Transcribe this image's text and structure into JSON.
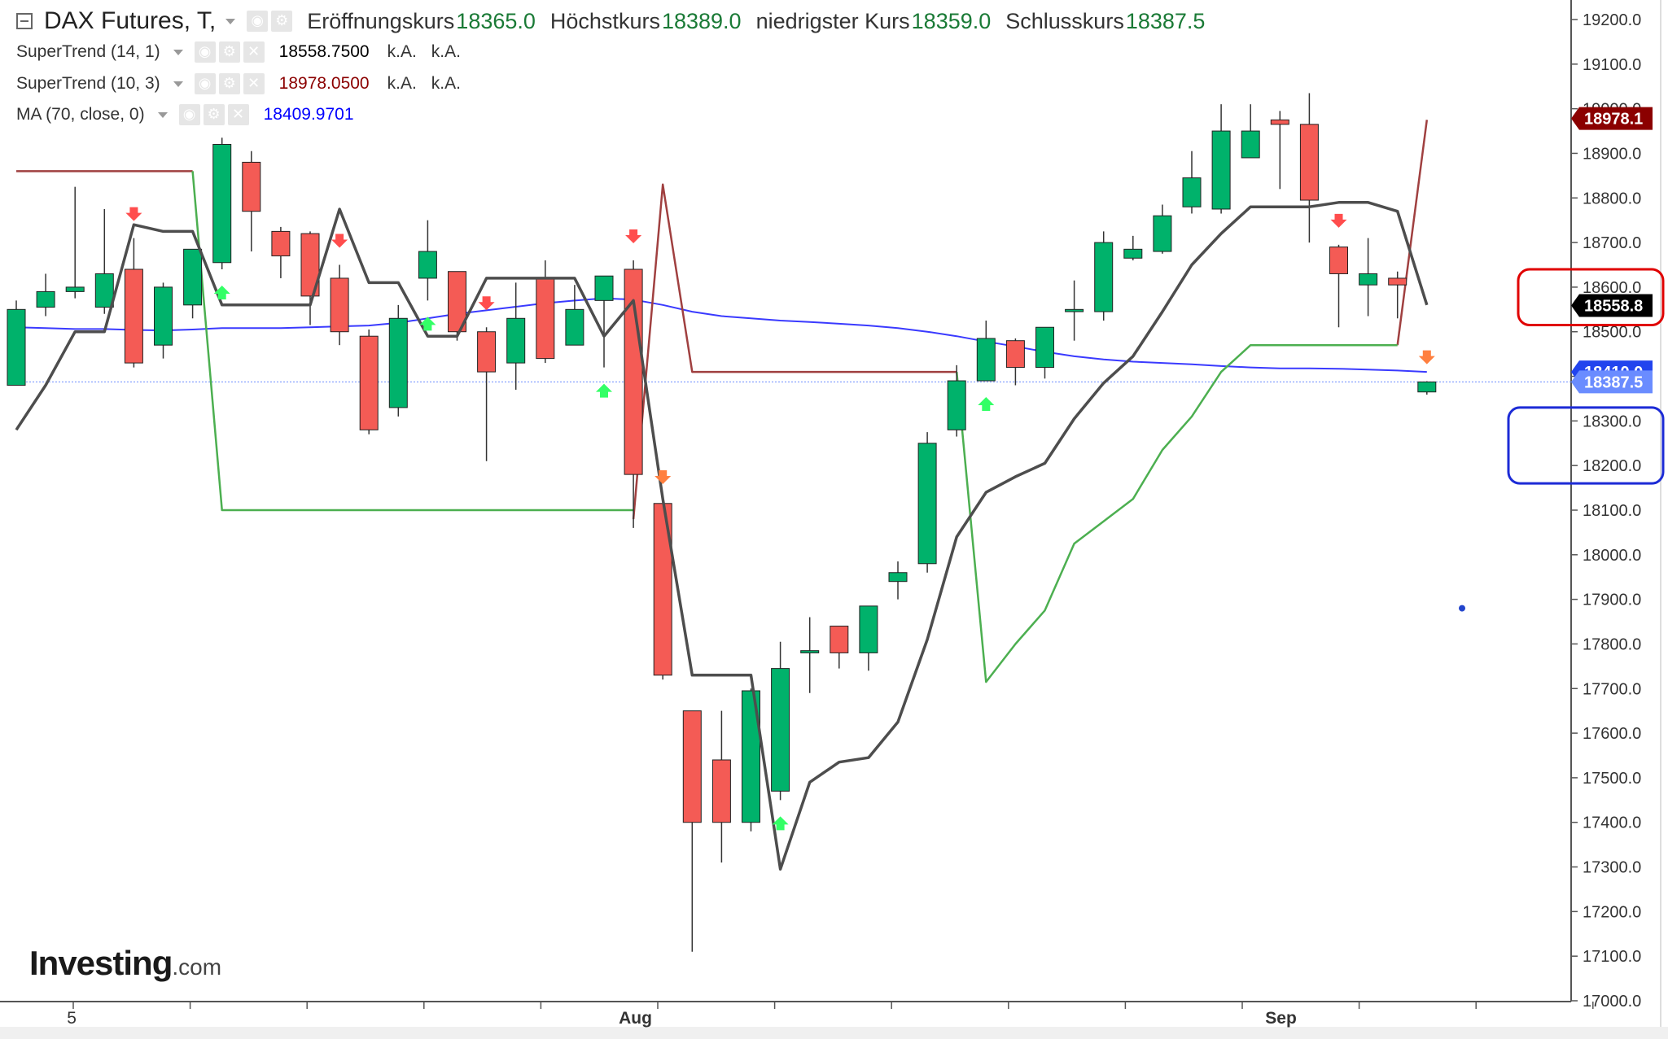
{
  "legend": {
    "title": "DAX Futures, T,",
    "ohlc": [
      {
        "label": "Eröffnungskurs",
        "value": "18365.0"
      },
      {
        "label": "Höchstkurs",
        "value": "18389.0"
      },
      {
        "label": "niedrigster Kurs",
        "value": "18359.0"
      },
      {
        "label": "Schlusskurs",
        "value": "18387.5"
      }
    ],
    "indicators": [
      {
        "name": "SuperTrend (14, 1)",
        "value": "18558.7500",
        "na1": "k.A.",
        "na2": "k.A.",
        "color": "#000000"
      },
      {
        "name": "SuperTrend (10, 3)",
        "value": "18978.0500",
        "na1": "k.A.",
        "na2": "k.A.",
        "color": "#8b0000"
      },
      {
        "name": "MA (70, close, 0)",
        "value": "18409.9701",
        "color": "#0000ff"
      }
    ]
  },
  "brand": {
    "name": "Investing",
    "suffix": ".com"
  },
  "colors": {
    "up": "#00b26b",
    "down": "#f45b55",
    "wick": "#333333",
    "supertrend_14_1": "#4d4d4d",
    "supertrend_10_3_green": "#4caf50",
    "supertrend_10_3_red": "#a04040",
    "ma": "#3a3aff",
    "last_price": "#6a8cff"
  },
  "chart_data": {
    "type": "candlestick",
    "yaxis": {
      "min": 17000,
      "max": 19250,
      "ticks": [
        "17000.0",
        "17100.0",
        "17200.0",
        "17300.0",
        "17400.0",
        "17500.0",
        "17600.0",
        "17700.0",
        "17800.0",
        "17900.0",
        "18000.0",
        "18100.0",
        "18200.0",
        "18300.0",
        "18400.0",
        "18500.0",
        "18600.0",
        "18700.0",
        "18800.0",
        "18900.0",
        "19000.0",
        "19100.0",
        "19200.0"
      ]
    },
    "xaxis": {
      "labels": [
        {
          "index": 2,
          "text": "5"
        },
        {
          "index": 21,
          "text": "Aug"
        },
        {
          "index": 43,
          "text": "Sep"
        }
      ]
    },
    "price_badges": [
      {
        "value": "18978.1",
        "color": "#8b0000"
      },
      {
        "value": "18558.8",
        "color": "#000000"
      },
      {
        "value": "18410.0",
        "color": "#2244ee"
      },
      {
        "value": "18387.5",
        "color": "#6a8cff"
      }
    ],
    "candles": [
      {
        "o": 18380,
        "h": 18570,
        "l": 18380,
        "c": 18550
      },
      {
        "o": 18555,
        "h": 18630,
        "l": 18535,
        "c": 18590
      },
      {
        "o": 18590,
        "h": 18825,
        "l": 18575,
        "c": 18600
      },
      {
        "o": 18555,
        "h": 18775,
        "l": 18540,
        "c": 18630
      },
      {
        "o": 18640,
        "h": 18710,
        "l": 18420,
        "c": 18430
      },
      {
        "o": 18470,
        "h": 18610,
        "l": 18440,
        "c": 18600
      },
      {
        "o": 18560,
        "h": 18680,
        "l": 18530,
        "c": 18685
      },
      {
        "o": 18655,
        "h": 18935,
        "l": 18640,
        "c": 18920
      },
      {
        "o": 18880,
        "h": 18905,
        "l": 18680,
        "c": 18770
      },
      {
        "o": 18725,
        "h": 18735,
        "l": 18620,
        "c": 18670
      },
      {
        "o": 18720,
        "h": 18725,
        "l": 18515,
        "c": 18580
      },
      {
        "o": 18620,
        "h": 18650,
        "l": 18470,
        "c": 18500
      },
      {
        "o": 18490,
        "h": 18505,
        "l": 18270,
        "c": 18280
      },
      {
        "o": 18330,
        "h": 18560,
        "l": 18310,
        "c": 18530
      },
      {
        "o": 18620,
        "h": 18750,
        "l": 18570,
        "c": 18680
      },
      {
        "o": 18635,
        "h": 18635,
        "l": 18480,
        "c": 18500
      },
      {
        "o": 18500,
        "h": 18510,
        "l": 18210,
        "c": 18410
      },
      {
        "o": 18430,
        "h": 18610,
        "l": 18370,
        "c": 18530
      },
      {
        "o": 18620,
        "h": 18660,
        "l": 18430,
        "c": 18440
      },
      {
        "o": 18470,
        "h": 18605,
        "l": 18480,
        "c": 18550
      },
      {
        "o": 18570,
        "h": 18625,
        "l": 18420,
        "c": 18625
      },
      {
        "o": 18640,
        "h": 18660,
        "l": 18060,
        "c": 18180
      },
      {
        "o": 18115,
        "h": 18120,
        "l": 17720,
        "c": 17730
      },
      {
        "o": 17650,
        "h": 17650,
        "l": 17110,
        "c": 17400
      },
      {
        "o": 17540,
        "h": 17650,
        "l": 17310,
        "c": 17400
      },
      {
        "o": 17400,
        "h": 17700,
        "l": 17380,
        "c": 17695
      },
      {
        "o": 17470,
        "h": 17805,
        "l": 17450,
        "c": 17745
      },
      {
        "o": 17780,
        "h": 17860,
        "l": 17690,
        "c": 17785
      },
      {
        "o": 17840,
        "h": 17840,
        "l": 17745,
        "c": 17780
      },
      {
        "o": 17780,
        "h": 17885,
        "l": 17740,
        "c": 17885
      },
      {
        "o": 17940,
        "h": 17985,
        "l": 17900,
        "c": 17960
      },
      {
        "o": 17980,
        "h": 18275,
        "l": 17960,
        "c": 18250
      },
      {
        "o": 18280,
        "h": 18425,
        "l": 18265,
        "c": 18390
      },
      {
        "o": 18390,
        "h": 18525,
        "l": 18390,
        "c": 18485
      },
      {
        "o": 18480,
        "h": 18485,
        "l": 18380,
        "c": 18420
      },
      {
        "o": 18420,
        "h": 18510,
        "l": 18395,
        "c": 18510
      },
      {
        "o": 18545,
        "h": 18615,
        "l": 18480,
        "c": 18550
      },
      {
        "o": 18545,
        "h": 18725,
        "l": 18525,
        "c": 18700
      },
      {
        "o": 18665,
        "h": 18715,
        "l": 18660,
        "c": 18685
      },
      {
        "o": 18680,
        "h": 18785,
        "l": 18675,
        "c": 18760
      },
      {
        "o": 18780,
        "h": 18905,
        "l": 18765,
        "c": 18845
      },
      {
        "o": 18775,
        "h": 19010,
        "l": 18765,
        "c": 18950
      },
      {
        "o": 18890,
        "h": 19010,
        "l": 18890,
        "c": 18950
      },
      {
        "o": 18975,
        "h": 18995,
        "l": 18820,
        "c": 18965
      },
      {
        "o": 18965,
        "h": 19035,
        "l": 18700,
        "c": 18795
      },
      {
        "o": 18690,
        "h": 18695,
        "l": 18510,
        "c": 18630
      },
      {
        "o": 18605,
        "h": 18710,
        "l": 18535,
        "c": 18630
      },
      {
        "o": 18620,
        "h": 18635,
        "l": 18530,
        "c": 18605
      },
      {
        "o": 18365,
        "h": 18389,
        "l": 18359,
        "c": 18387.5
      }
    ],
    "supertrend_14_1": [
      18280,
      18380,
      18500,
      18500,
      18740,
      18725,
      18725,
      18560,
      18560,
      18560,
      18560,
      18775,
      18610,
      18610,
      18490,
      18490,
      18620,
      18620,
      18620,
      18620,
      18490,
      18570,
      18125,
      17730,
      17730,
      17730,
      17295,
      17490,
      17535,
      17545,
      17625,
      17810,
      18040,
      18140,
      18175,
      18205,
      18305,
      18385,
      18445,
      18545,
      18650,
      18720,
      18780,
      18780,
      18780,
      18790,
      18790,
      18770,
      18560
    ],
    "supertrend_10_3": {
      "red": [
        [
          0,
          18860
        ],
        [
          1,
          18860
        ],
        [
          2,
          18860
        ],
        [
          3,
          18860
        ],
        [
          4,
          18860
        ],
        [
          5,
          18860
        ],
        [
          6,
          18860
        ],
        null,
        null,
        null,
        null,
        null,
        null,
        null,
        null,
        null,
        null,
        null,
        null,
        null,
        null,
        [
          21,
          18080
        ],
        [
          22,
          18830
        ],
        [
          23,
          18410
        ],
        [
          24,
          18410
        ],
        [
          25,
          18410
        ],
        [
          26,
          18410
        ],
        [
          27,
          18410
        ],
        [
          28,
          18410
        ],
        [
          29,
          18410
        ],
        [
          30,
          18410
        ],
        [
          31,
          18410
        ],
        [
          32,
          18410
        ],
        null,
        null,
        null,
        null,
        null,
        null,
        null,
        null,
        null,
        null,
        null,
        null,
        null,
        null,
        [
          47,
          18470
        ],
        [
          48,
          18975
        ]
      ],
      "green": [
        null,
        null,
        null,
        null,
        null,
        null,
        [
          6,
          18860
        ],
        [
          7,
          18100
        ],
        [
          8,
          18100
        ],
        [
          9,
          18100
        ],
        [
          10,
          18100
        ],
        [
          11,
          18100
        ],
        [
          12,
          18100
        ],
        [
          13,
          18100
        ],
        [
          14,
          18100
        ],
        [
          15,
          18100
        ],
        [
          16,
          18100
        ],
        [
          17,
          18100
        ],
        [
          18,
          18100
        ],
        [
          19,
          18100
        ],
        [
          20,
          18100
        ],
        [
          21,
          18100
        ],
        null,
        null,
        null,
        null,
        null,
        null,
        null,
        null,
        null,
        null,
        [
          32,
          18410
        ],
        [
          33,
          17715
        ],
        [
          34,
          17800
        ],
        [
          35,
          17875
        ],
        [
          36,
          18025
        ],
        [
          37,
          18075
        ],
        [
          38,
          18125
        ],
        [
          39,
          18235
        ],
        [
          40,
          18310
        ],
        [
          41,
          18410
        ],
        [
          42,
          18470
        ],
        [
          43,
          18470
        ],
        [
          44,
          18470
        ],
        [
          45,
          18470
        ],
        [
          46,
          18470
        ],
        [
          47,
          18470
        ],
        null
      ]
    },
    "ma_70": [
      18510,
      18508,
      18506,
      18506,
      18504,
      18503,
      18505,
      18508,
      18508,
      18508,
      18510,
      18512,
      18514,
      18520,
      18530,
      18540,
      18548,
      18556,
      18564,
      18570,
      18575,
      18572,
      18560,
      18545,
      18535,
      18530,
      18525,
      18522,
      18518,
      18514,
      18508,
      18500,
      18490,
      18478,
      18467,
      18455,
      18445,
      18438,
      18433,
      18430,
      18427,
      18423,
      18420,
      18418,
      18418,
      18417,
      18415,
      18413,
      18410
    ],
    "arrows": [
      {
        "index": 4,
        "type": "down",
        "color": "#ff4d4d"
      },
      {
        "index": 7,
        "type": "up",
        "color": "#33ff66"
      },
      {
        "index": 11,
        "type": "down",
        "color": "#ff4d4d"
      },
      {
        "index": 14,
        "type": "up",
        "color": "#33ff66"
      },
      {
        "index": 16,
        "type": "down",
        "color": "#ff4d4d"
      },
      {
        "index": 20,
        "type": "up",
        "color": "#33ff66"
      },
      {
        "index": 21,
        "type": "down",
        "color": "#ff4d4d"
      },
      {
        "index": 22,
        "type": "down",
        "color": "#ff7f3f"
      },
      {
        "index": 26,
        "type": "up",
        "color": "#33ff66"
      },
      {
        "index": 33,
        "type": "up",
        "color": "#33ff66"
      },
      {
        "index": 45,
        "type": "down",
        "color": "#ff4d4d"
      },
      {
        "index": 48,
        "type": "down",
        "color": "#ff7f3f"
      }
    ],
    "highlight_boxes": [
      {
        "y_top": 18640,
        "y_bottom": 18515,
        "color": "#e00000"
      },
      {
        "y_top": 18330,
        "y_bottom": 18160,
        "color": "#1c2bd6"
      }
    ]
  }
}
